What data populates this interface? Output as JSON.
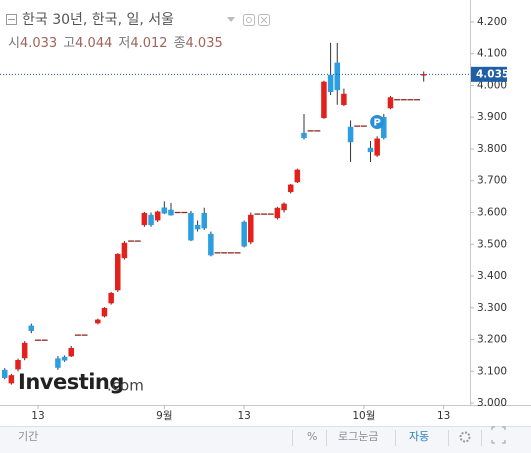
{
  "chart_data": {
    "type": "candlestick",
    "title": "한국 30년, 한국, 일, 서울",
    "ohlc_header": [
      {
        "label": "시",
        "value": "4.033"
      },
      {
        "label": "고",
        "value": "4.044"
      },
      {
        "label": "저",
        "value": "4.012"
      },
      {
        "label": "종",
        "value": "4.035"
      }
    ],
    "x": [
      -5,
      -4,
      -3,
      -2,
      -1,
      0,
      1,
      3,
      4,
      5,
      6,
      7,
      9,
      10,
      11,
      12,
      13,
      14,
      15,
      16,
      17,
      18,
      19,
      20,
      21,
      22,
      23,
      24,
      25,
      26,
      27,
      28,
      29,
      30,
      31,
      32,
      33,
      34,
      35,
      36,
      37,
      38,
      39,
      40,
      41,
      42,
      43,
      44,
      45,
      46,
      47,
      48,
      49,
      50,
      51,
      52,
      53,
      54,
      55,
      56,
      57,
      58
    ],
    "open": [
      3.104,
      3.063,
      3.107,
      3.142,
      3.243,
      3.198,
      3.198,
      3.14,
      3.145,
      3.148,
      3.214,
      3.214,
      3.252,
      3.274,
      3.315,
      3.356,
      3.457,
      3.51,
      3.51,
      3.561,
      3.592,
      3.576,
      3.615,
      3.608,
      3.6,
      3.6,
      3.598,
      3.56,
      3.598,
      3.532,
      3.473,
      3.473,
      3.473,
      3.473,
      3.57,
      3.507,
      3.595,
      3.595,
      3.595,
      3.583,
      3.608,
      3.665,
      3.696,
      3.85,
      3.857,
      3.857,
      3.898,
      4.033,
      4.071,
      3.939,
      3.869,
      3.872,
      3.872,
      3.803,
      3.78,
      3.9,
      3.929,
      3.955,
      3.955,
      3.955,
      3.955,
      4.033
    ],
    "high": [
      3.11,
      3.092,
      3.14,
      3.195,
      3.25,
      3.198,
      3.198,
      3.148,
      3.15,
      3.18,
      3.214,
      3.214,
      3.266,
      3.302,
      3.35,
      3.472,
      3.51,
      3.51,
      3.51,
      3.602,
      3.6,
      3.606,
      3.635,
      3.63,
      3.6,
      3.6,
      3.605,
      3.575,
      3.615,
      3.54,
      3.473,
      3.473,
      3.473,
      3.473,
      3.575,
      3.6,
      3.595,
      3.595,
      3.595,
      3.618,
      3.632,
      3.69,
      3.738,
      3.91,
      3.857,
      3.857,
      4.015,
      4.134,
      4.134,
      3.99,
      3.89,
      3.872,
      3.872,
      3.825,
      3.84,
      3.91,
      3.967,
      3.955,
      3.955,
      3.955,
      3.955,
      4.044
    ],
    "low": [
      3.075,
      3.058,
      3.1,
      3.135,
      3.22,
      3.198,
      3.198,
      3.105,
      3.13,
      3.145,
      3.214,
      3.214,
      3.248,
      3.27,
      3.31,
      3.35,
      3.452,
      3.51,
      3.51,
      3.555,
      3.555,
      3.57,
      3.595,
      3.59,
      3.6,
      3.6,
      3.51,
      3.54,
      3.545,
      3.462,
      3.473,
      3.473,
      3.473,
      3.473,
      3.49,
      3.5,
      3.595,
      3.595,
      3.595,
      3.578,
      3.6,
      3.66,
      3.693,
      3.83,
      3.857,
      3.857,
      3.895,
      3.97,
      3.939,
      3.935,
      3.759,
      3.872,
      3.872,
      3.759,
      3.775,
      3.83,
      3.925,
      3.955,
      3.955,
      3.955,
      3.955,
      4.012
    ],
    "close": [
      3.08,
      3.087,
      3.135,
      3.189,
      3.228,
      3.198,
      3.198,
      3.112,
      3.135,
      3.173,
      3.214,
      3.214,
      3.262,
      3.299,
      3.346,
      3.469,
      3.504,
      3.51,
      3.51,
      3.598,
      3.561,
      3.602,
      3.598,
      3.592,
      3.6,
      3.6,
      3.513,
      3.548,
      3.551,
      3.466,
      3.473,
      3.473,
      3.473,
      3.473,
      3.494,
      3.592,
      3.595,
      3.595,
      3.595,
      3.614,
      3.627,
      3.687,
      3.734,
      3.835,
      3.857,
      3.857,
      4.011,
      3.98,
      3.986,
      3.973,
      3.822,
      3.872,
      3.872,
      3.791,
      3.832,
      3.835,
      3.962,
      3.955,
      3.955,
      3.955,
      3.955,
      4.035
    ],
    "up_color": "#e3201b",
    "down_color": "#2a9ee0",
    "flat_color": "#8b2a22",
    "last_price": 4.035,
    "last_price_color": "#1f5fa6",
    "annotations": [
      {
        "text": "P",
        "x": 51,
        "y": 3.885,
        "color": "#2a8fd6"
      }
    ],
    "xlim": [
      -5.71,
      64.96
    ],
    "xticks": [
      {
        "value": 0,
        "label": "13"
      },
      {
        "value": 19,
        "label": "9월"
      },
      {
        "value": 31,
        "label": "13"
      },
      {
        "value": 49,
        "label": "10월"
      },
      {
        "value": 61,
        "label": "13"
      }
    ],
    "ylim": [
      2.994,
      4.269
    ],
    "yticks": [
      {
        "value": 4.2,
        "label": "4.200"
      },
      {
        "value": 4.1,
        "label": "4.100"
      },
      {
        "value": 4.0,
        "label": "4.000"
      },
      {
        "value": 3.9,
        "label": "3.900"
      },
      {
        "value": 3.8,
        "label": "3.800"
      },
      {
        "value": 3.7,
        "label": "3.700"
      },
      {
        "value": 3.6,
        "label": "3.600"
      },
      {
        "value": 3.5,
        "label": "3.500"
      },
      {
        "value": 3.4,
        "label": "3.400"
      },
      {
        "value": 3.3,
        "label": "3.300"
      },
      {
        "value": 3.2,
        "label": "3.200"
      },
      {
        "value": 3.1,
        "label": "3.100"
      },
      {
        "value": 3.0,
        "label": "3.000"
      }
    ],
    "grid": false
  },
  "watermark": {
    "name": "Investing",
    "suffix": ".com"
  },
  "toolbar": {
    "period": "기간",
    "percent": "%",
    "log": "로그눈금",
    "auto": "자동"
  }
}
